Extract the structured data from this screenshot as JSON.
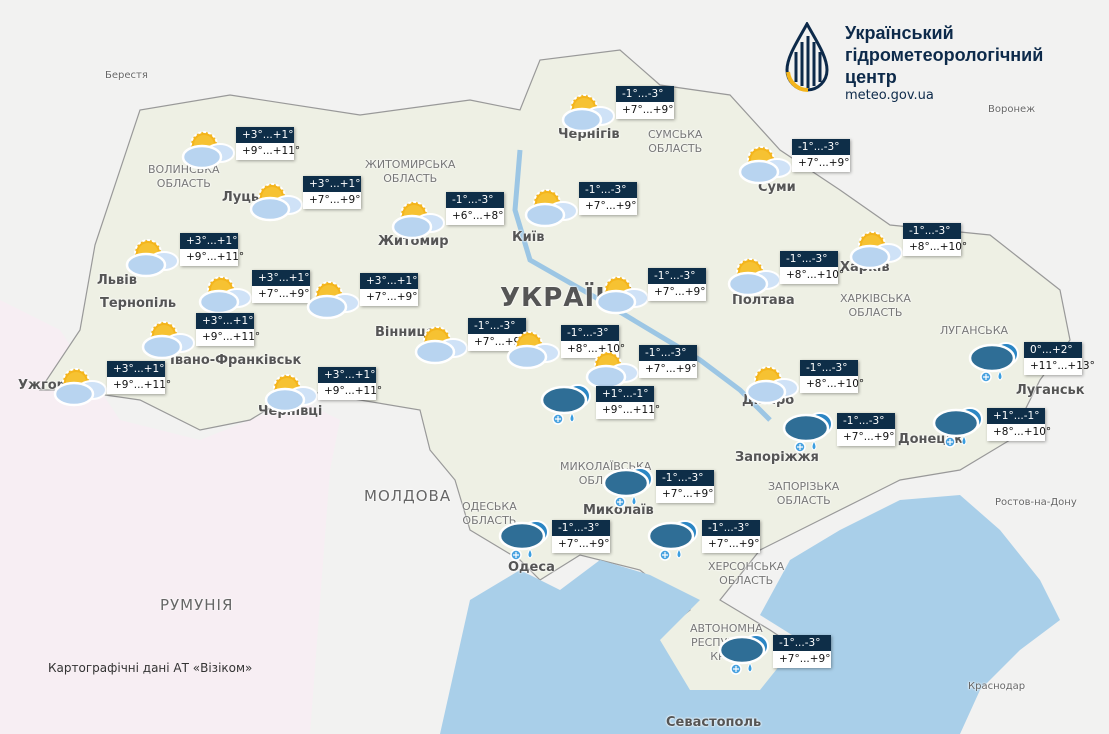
{
  "logo": {
    "lines": [
      "Український",
      "гідрометеорологічний",
      "центр"
    ],
    "url": "meteo.gov.ua"
  },
  "attribution": "Картографічні дані АТ «Візіком»",
  "colors": {
    "night_bg": "#0e2e48",
    "sea": "#a9cfe9",
    "land": "#eef0e4",
    "sun": "#f4b51c",
    "cloud_light": "#b8d4f0",
    "cloud_dark": "#2f6e96"
  },
  "labels": [
    {
      "t": "Берестя",
      "c": "small"
    },
    {
      "t": "Чернігів"
    },
    {
      "t": "Суми"
    },
    {
      "t": "Київ"
    },
    {
      "t": "Житомир"
    },
    {
      "t": "Луцьк"
    },
    {
      "t": "Львів"
    },
    {
      "t": "Тернопіль"
    },
    {
      "t": "Вінниця"
    },
    {
      "t": "Івано-Франківськ"
    },
    {
      "t": "Ужгород"
    },
    {
      "t": "Чернівці"
    },
    {
      "t": "Полтава"
    },
    {
      "t": "Харків"
    },
    {
      "t": "Дніпро"
    },
    {
      "t": "Запоріжжя"
    },
    {
      "t": "Донецьк"
    },
    {
      "t": "Луганськ"
    },
    {
      "t": "Одеса"
    },
    {
      "t": "Миколаїв"
    },
    {
      "t": "Севастополь"
    },
    {
      "t": "Воронеж",
      "c": "small"
    },
    {
      "t": "Ростов-на-Дону",
      "c": "small"
    },
    {
      "t": "Краснодар",
      "c": "small"
    },
    {
      "t": "МОЛДОВА",
      "c": "country"
    },
    {
      "t": "РУМУНІЯ",
      "c": "country"
    },
    {
      "t": "УКРАЇНА",
      "c": "big"
    },
    {
      "t": "СУМСЬКА\nОБЛАСТЬ",
      "c": "obl"
    },
    {
      "t": "ХАРКІВСЬКА\nОБЛАСТЬ",
      "c": "obl"
    },
    {
      "t": "ЗАПОРІЗЬКА\nОБЛАСТЬ",
      "c": "obl"
    },
    {
      "t": "ЛУГАНСЬКА",
      "c": "obl"
    },
    {
      "t": "МИКОЛАЇВСЬКА\nОБЛАСТЬ",
      "c": "obl"
    },
    {
      "t": "ОДЕСЬКА\nОБЛАСТЬ",
      "c": "obl"
    },
    {
      "t": "ВОЛИНСЬКА\nОБЛАСТЬ",
      "c": "obl"
    },
    {
      "t": "ЖИТОМИРСЬКА\nОБЛАСТЬ",
      "c": "obl"
    },
    {
      "t": "ХЕРСОНСЬКА\nОБЛАСТЬ",
      "c": "obl"
    },
    {
      "t": "АВТОНОМНА\nРЕСПУБЛІКА\nКРИМ",
      "c": "obl"
    }
  ],
  "forecasts": [
    {
      "region": "volyn",
      "icon": "sun-cloud",
      "night": "+3°...+1°",
      "day": "+9°...+11°"
    },
    {
      "region": "rivne",
      "icon": "sun-cloud",
      "night": "+3°...+1°",
      "day": "+7°...+9°"
    },
    {
      "region": "zhytomyr",
      "icon": "sun-cloud",
      "night": "-1°...-3°",
      "day": "+6°...+8°"
    },
    {
      "region": "kyiv",
      "icon": "sun-cloud",
      "night": "-1°...-3°",
      "day": "+7°...+9°"
    },
    {
      "region": "chernihiv",
      "icon": "sun-cloud",
      "night": "-1°...-3°",
      "day": "+7°...+9°"
    },
    {
      "region": "sumy",
      "icon": "sun-cloud",
      "night": "-1°...-3°",
      "day": "+7°...+9°"
    },
    {
      "region": "kharkiv",
      "icon": "sun-cloud",
      "night": "-1°...-3°",
      "day": "+8°...+10°"
    },
    {
      "region": "poltava",
      "icon": "sun-cloud",
      "night": "-1°...-3°",
      "day": "+8°...+10°"
    },
    {
      "region": "cherkasy-north",
      "icon": "sun-cloud",
      "night": "-1°...-3°",
      "day": "+7°...+9°"
    },
    {
      "region": "lviv",
      "icon": "sun-cloud",
      "night": "+3°...+1°",
      "day": "+9°...+11°"
    },
    {
      "region": "ternopil",
      "icon": "sun-cloud",
      "night": "+3°...+1°",
      "day": "+7°...+9°"
    },
    {
      "region": "khmelnytskyi",
      "icon": "sun-cloud",
      "night": "+3°...+1°",
      "day": "+7°...+9°"
    },
    {
      "region": "ivano-frankivsk",
      "icon": "sun-cloud",
      "night": "+3°...+1°",
      "day": "+9°...+11°"
    },
    {
      "region": "zakarpattia",
      "icon": "sun-cloud",
      "night": "+3°...+1°",
      "day": "+9°...+11°"
    },
    {
      "region": "chernivtsi",
      "icon": "sun-cloud",
      "night": "+3°...+1°",
      "day": "+9°...+11°"
    },
    {
      "region": "vinnytsia",
      "icon": "sun-cloud",
      "night": "-1°...-3°",
      "day": "+7°...+9°"
    },
    {
      "region": "cherkasy",
      "icon": "sun-cloud",
      "night": "-1°...-3°",
      "day": "+8°...+10°"
    },
    {
      "region": "kirovohrad-north",
      "icon": "sun-cloud",
      "night": "-1°...-3°",
      "day": "+7°...+9°"
    },
    {
      "region": "dnipro",
      "icon": "sun-cloud",
      "night": "-1°...-3°",
      "day": "+8°...+10°"
    },
    {
      "region": "kirovohrad",
      "icon": "rain-snow",
      "night": "+1°...-1°",
      "day": "+9°...+11°"
    },
    {
      "region": "zaporizhzhia",
      "icon": "rain-snow",
      "night": "-1°...-3°",
      "day": "+7°...+9°"
    },
    {
      "region": "luhansk",
      "icon": "rain-snow",
      "night": "0°...+2°",
      "day": "+11°...+13°"
    },
    {
      "region": "donetsk",
      "icon": "rain-snow",
      "night": "+1°...-1°",
      "day": "+8°...+10°"
    },
    {
      "region": "mykolaiv",
      "icon": "rain-snow",
      "night": "-1°...-3°",
      "day": "+7°...+9°"
    },
    {
      "region": "odesa",
      "icon": "rain-snow",
      "night": "-1°...-3°",
      "day": "+7°...+9°"
    },
    {
      "region": "kherson",
      "icon": "rain-snow",
      "night": "-1°...-3°",
      "day": "+7°...+9°"
    },
    {
      "region": "crimea",
      "icon": "rain-snow",
      "night": "-1°...-3°",
      "day": "+7°...+9°"
    }
  ]
}
